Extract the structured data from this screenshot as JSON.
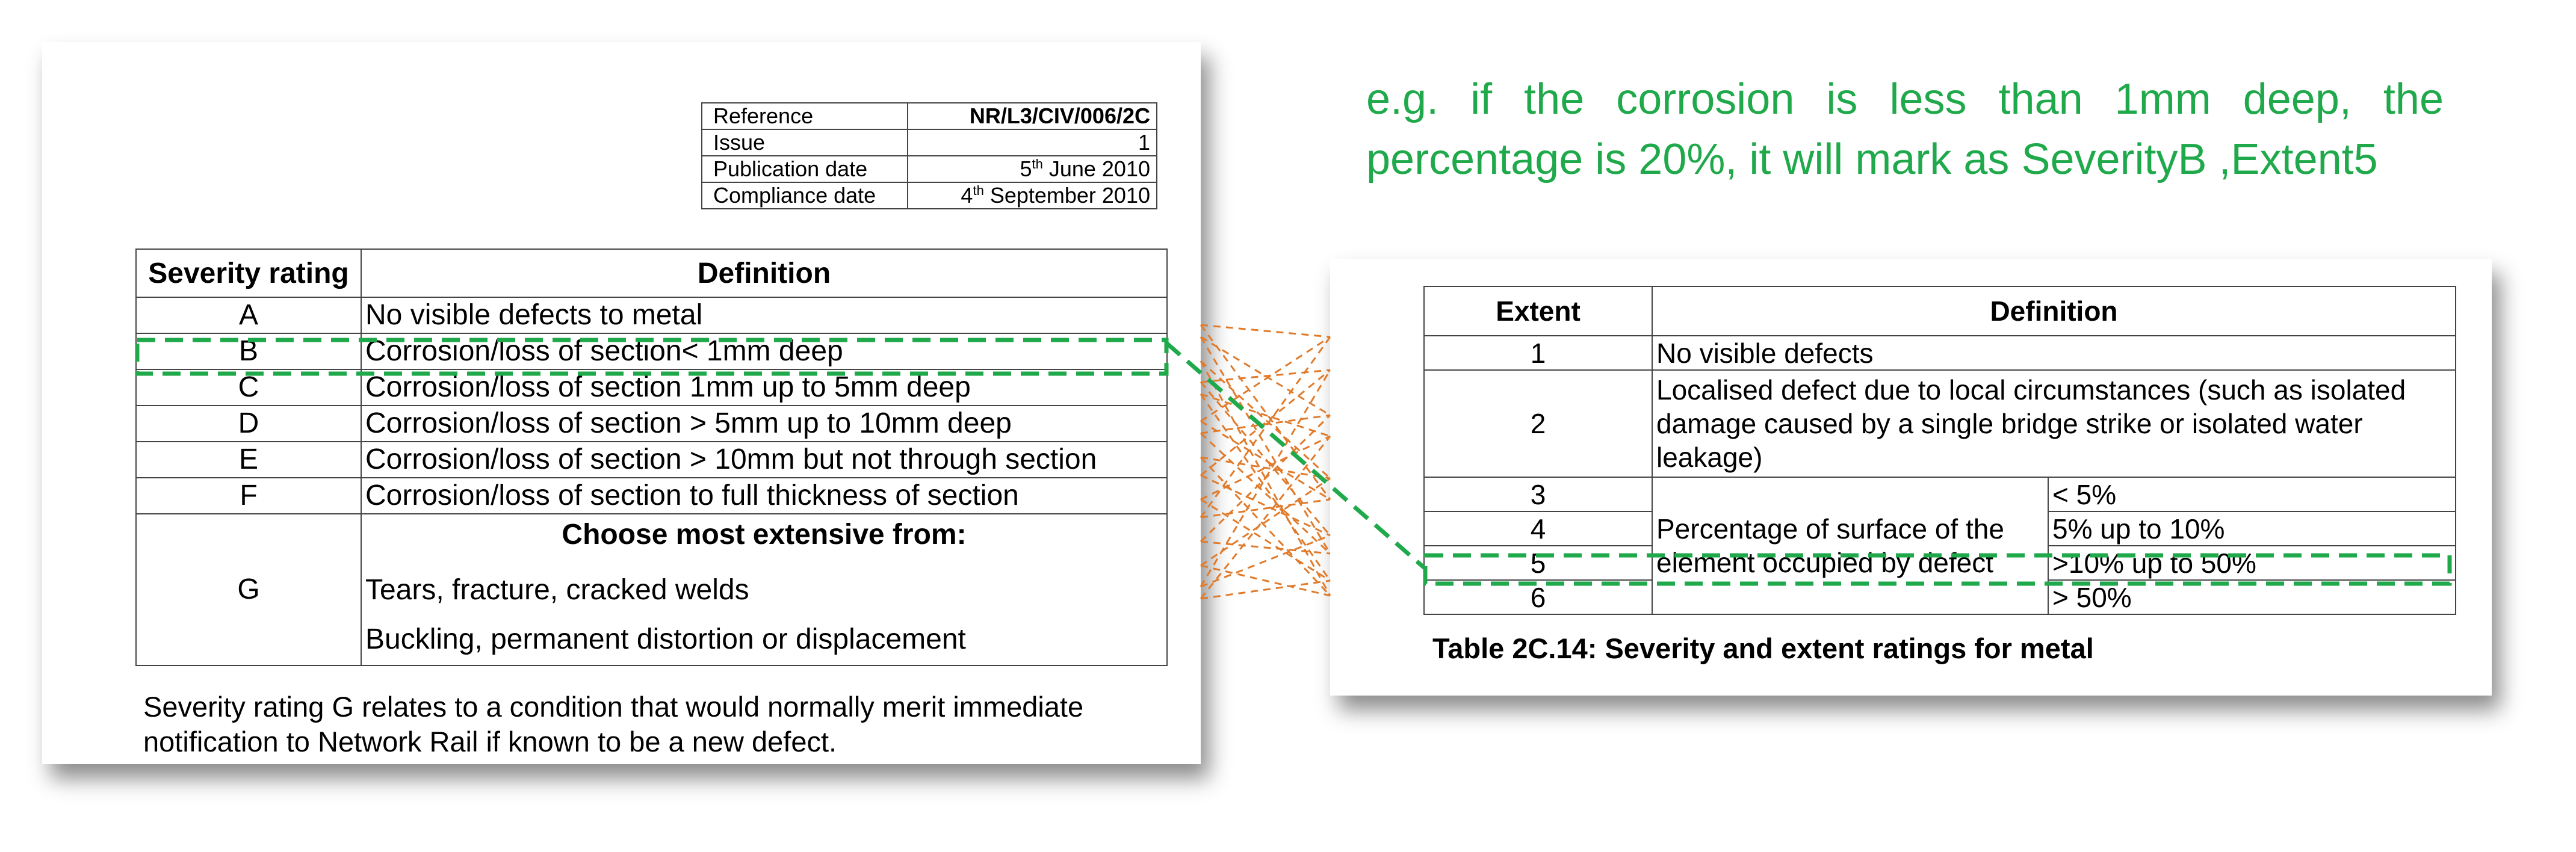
{
  "metadata": {
    "rows": [
      {
        "label": "Reference",
        "value": "NR/L3/CIV/006/2C"
      },
      {
        "label": "Issue",
        "value": "1"
      },
      {
        "label": "Publication date",
        "value_num": "5",
        "value_sup": "th",
        "value_rest": " June 2010"
      },
      {
        "label": "Compliance date",
        "value_num": "4",
        "value_sup": "th",
        "value_rest": " September 2010"
      }
    ]
  },
  "severity_table": {
    "headers": [
      "Severity rating",
      "Definition"
    ],
    "rows": [
      {
        "rating": "A",
        "definition": "No visible defects to metal"
      },
      {
        "rating": "B",
        "definition": "Corrosion/loss of section< 1mm deep"
      },
      {
        "rating": "C",
        "definition": "Corrosion/loss of section 1mm up to 5mm deep"
      },
      {
        "rating": "D",
        "definition": "Corrosion/loss of section > 5mm up to 10mm deep"
      },
      {
        "rating": "E",
        "definition": "Corrosion/loss of section > 10mm but not through section"
      },
      {
        "rating": "F",
        "definition": "Corrosion/loss of section to full thickness of section"
      }
    ],
    "g_row": {
      "rating": "G",
      "heading": "Choose most extensive from:",
      "items": [
        "Tears, fracture, cracked welds",
        "Buckling, permanent distortion or displacement"
      ]
    },
    "note": "Severity rating G relates to a condition that would normally merit immediate notification to Network Rail if known to be a new defect."
  },
  "extent_table": {
    "headers": [
      "Extent",
      "Definition"
    ],
    "rows": [
      {
        "extent": "1",
        "definition": "No visible defects"
      },
      {
        "extent": "2",
        "definition": "Localised defect due to local circumstances (such as isolated  damage caused by a single bridge strike or isolated water leakage)"
      },
      {
        "extent": "3",
        "range": "< 5%"
      },
      {
        "extent": "4",
        "range": "5% up to 10%"
      },
      {
        "extent": "5",
        "range": ">10% up to 50%"
      },
      {
        "extent": "6",
        "range": "> 50%"
      }
    ],
    "shared_definition": "Percentage of surface of the element occupied by defect",
    "caption": "Table 2C.14:  Severity and extent ratings for metal"
  },
  "example_annotation": "e.g. if the corrosion is less than 1mm deep, the percentage is 20%, it will mark as SeverityB ,Extent5",
  "colors": {
    "annotation_text": "#1fa94b",
    "highlight_dash": "#1fa94b",
    "connector_lines": "#e07b2c"
  }
}
